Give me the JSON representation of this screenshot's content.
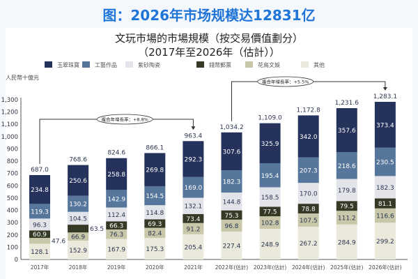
{
  "headline": "图：2026年市场规模达12831亿",
  "chart_data": {
    "type": "bar",
    "stacked": true,
    "title": "文玩市場的市場規模（按交易價值劃分）",
    "subtitle": "（2017年至2026年（估計））",
    "ylabel": "人民幣十億元",
    "xlabel": "",
    "ylim": [
      0,
      1300
    ],
    "yticks": [
      0,
      100,
      200,
      300,
      400,
      500,
      600,
      700,
      800,
      900,
      1000,
      1100,
      1200,
      1300
    ],
    "ytick_labels": [
      "0",
      "100",
      "200",
      "300",
      "400",
      "500",
      "600",
      "700",
      "800",
      "900",
      "1,000",
      "1,100",
      "1,200",
      "1,300"
    ],
    "grid": false,
    "legend_position": "top",
    "categories": [
      "2017年",
      "2018年",
      "2019年",
      "2020年",
      "2021年",
      "2022年(估計)",
      "2023年(估計)",
      "2024年(估計)",
      "2025年(估計)",
      "2026年(估計)"
    ],
    "series": [
      {
        "name": "其他",
        "color": "#ebe9db",
        "values": [
          128.1,
          152.9,
          167.9,
          175.3,
          205.4,
          227.4,
          248.9,
          267.2,
          284.9,
          299.2
        ]
      },
      {
        "name": "花鳥文娛",
        "color": "#c8c7a9",
        "values": [
          47.6,
          66.9,
          76.3,
          82.4,
          91.2,
          96.8,
          102.8,
          107.5,
          111.2,
          116.6
        ]
      },
      {
        "name": "錢幣郵票",
        "color": "#363926",
        "values": [
          60.9,
          63.5,
          66.3,
          69.3,
          73.4,
          75.3,
          77.5,
          78.8,
          79.5,
          81.1
        ]
      },
      {
        "name": "紫砂陶瓷",
        "color": "#e2e4ea",
        "values": [
          96.3,
          104.5,
          112.4,
          114.8,
          132.1,
          144.8,
          158.5,
          170.0,
          179.8,
          182.3
        ]
      },
      {
        "name": "工藝作品",
        "color": "#56779b",
        "values": [
          119.3,
          130.2,
          142.9,
          154.5,
          169.0,
          182.3,
          195.4,
          207.3,
          218.6,
          230.5
        ]
      },
      {
        "name": "玉翠珠寶",
        "color": "#25325b",
        "values": [
          234.8,
          250.6,
          258.8,
          269.8,
          292.3,
          307.6,
          325.9,
          342.0,
          357.6,
          373.4
        ]
      }
    ],
    "totals": [
      "687.0",
      "768.6",
      "824.6",
      "866.1",
      "963.4",
      "1,034.2",
      "1,109.0",
      "1,172.8",
      "1,231.6",
      "1,283.1"
    ],
    "legend_order": [
      "玉翠珠寶",
      "工藝作品",
      "紫砂陶瓷",
      "錢幣郵票",
      "花鳥文娛",
      "其他"
    ],
    "annotations": [
      {
        "text": "複合年增長率：+8.8%",
        "from": "2017年",
        "to": "2021年"
      },
      {
        "text": "複合年增長率：+5.5%",
        "from": "2022年(估計)",
        "to": "2026年(估計)"
      }
    ]
  }
}
